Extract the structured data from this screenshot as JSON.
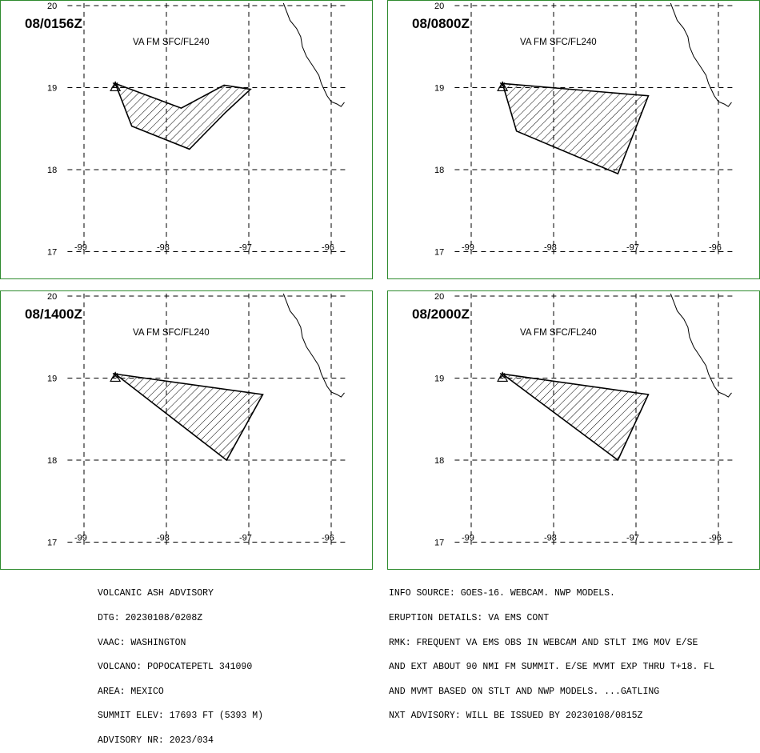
{
  "map": {
    "lon_ticks": [
      "-99",
      "-98",
      "-97",
      "-96"
    ],
    "lat_ticks": [
      "20",
      "19",
      "18",
      "17"
    ],
    "lon_range": [
      -99.5,
      -95.8
    ],
    "lat_range": [
      16.97,
      20.03
    ]
  },
  "volcano": {
    "name": "POPOCATEPETL",
    "lon": -98.62,
    "lat": 19.02
  },
  "panels": [
    {
      "time": "08/0156Z",
      "level": "VA FM SFC/FL240",
      "polygon": [
        [
          -98.62,
          19.05
        ],
        [
          -98.42,
          18.53
        ],
        [
          -97.72,
          18.25
        ],
        [
          -97.28,
          18.7
        ],
        [
          -96.98,
          18.98
        ],
        [
          -97.3,
          19.03
        ],
        [
          -97.82,
          18.75
        ],
        [
          -98.62,
          19.05
        ]
      ]
    },
    {
      "time": "08/0800Z",
      "level": "VA FM SFC/FL240",
      "polygon": [
        [
          -98.62,
          19.05
        ],
        [
          -98.45,
          18.47
        ],
        [
          -97.22,
          17.95
        ],
        [
          -96.85,
          18.9
        ],
        [
          -98.62,
          19.05
        ]
      ]
    },
    {
      "time": "08/1400Z",
      "level": "VA FM SFC/FL240",
      "polygon": [
        [
          -98.62,
          19.05
        ],
        [
          -96.83,
          18.8
        ],
        [
          -97.27,
          18.0
        ],
        [
          -98.62,
          19.05
        ]
      ]
    },
    {
      "time": "08/2000Z",
      "level": "VA FM SFC/FL240",
      "polygon": [
        [
          -98.62,
          19.05
        ],
        [
          -96.85,
          18.8
        ],
        [
          -97.22,
          18.0
        ],
        [
          -98.62,
          19.05
        ]
      ]
    }
  ],
  "advisory_left": [
    "VOLCANIC ASH ADVISORY",
    "DTG: 20230108/0208Z",
    "VAAC: WASHINGTON",
    "VOLCANO: POPOCATEPETL 341090",
    "AREA: MEXICO",
    "SUMMIT ELEV: 17693 FT (5393 M)",
    "ADVISORY NR: 2023/034"
  ],
  "advisory_right": [
    "INFO SOURCE: GOES-16. WEBCAM. NWP MODELS.",
    "ERUPTION DETAILS: VA EMS CONT",
    "RMK: FREQUENT VA EMS OBS IN WEBCAM AND STLT IMG MOV E/SE",
    "AND EXT ABOUT 90 NMI FM SUMMIT. E/SE MVMT EXP THRU T+18. FL",
    "AND MVMT BASED ON STLT AND NWP MODELS. ...GATLING",
    "NXT ADVISORY: WILL BE ISSUED BY 20230108/0815Z"
  ],
  "colors": {
    "frame": "#2e8b2e",
    "lines": "#000000",
    "background": "#ffffff"
  }
}
